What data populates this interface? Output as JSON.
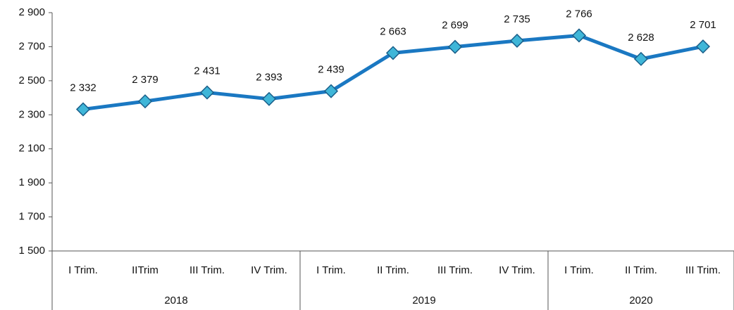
{
  "chart_data": {
    "type": "line",
    "category_groups": [
      {
        "label": "2018",
        "categories": [
          "I Trim.",
          "IITrim",
          "III Trim.",
          "IV Trim."
        ]
      },
      {
        "label": "2019",
        "categories": [
          "I Trim.",
          "II Trim.",
          "III Trim.",
          "IV Trim."
        ]
      },
      {
        "label": "2020",
        "categories": [
          "I Trim.",
          "II Trim.",
          "III Trim."
        ]
      }
    ],
    "values": [
      2332,
      2379,
      2431,
      2393,
      2439,
      2663,
      2699,
      2735,
      2766,
      2628,
      2701
    ],
    "value_labels": [
      "2 332",
      "2 379",
      "2 431",
      "2 393",
      "2 439",
      "2 663",
      "2 699",
      "2 735",
      "2 766",
      "2 628",
      "2 701"
    ],
    "color": "#1a78c2",
    "marker_color": "#3fb6d8",
    "ylim": [
      1500,
      2900
    ],
    "yticks": [
      {
        "value": 1500,
        "label": "1 500"
      },
      {
        "value": 1700,
        "label": "1 700"
      },
      {
        "value": 1900,
        "label": "1 900"
      },
      {
        "value": 2100,
        "label": "2 100"
      },
      {
        "value": 2300,
        "label": "2 300"
      },
      {
        "value": 2500,
        "label": "2 500"
      },
      {
        "value": 2700,
        "label": "2 700"
      },
      {
        "value": 2900,
        "label": "2 900"
      }
    ],
    "grid": false
  }
}
